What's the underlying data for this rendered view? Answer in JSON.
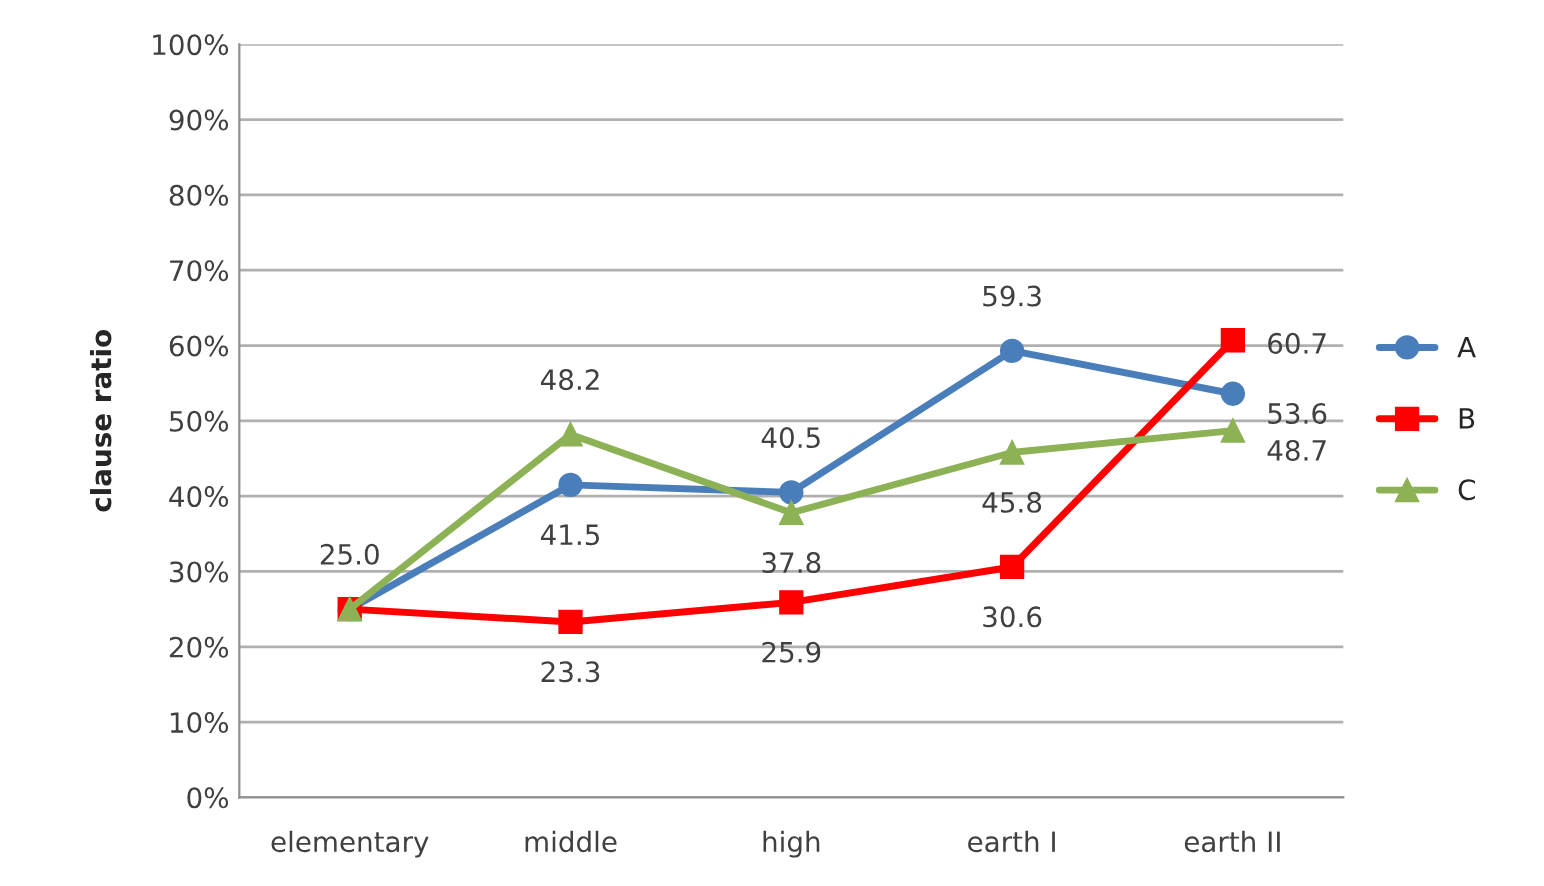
{
  "chart_data": {
    "type": "line",
    "ylabel": "clause ratio",
    "categories": [
      "elementary",
      "middle",
      "high",
      "earth I",
      "earth II"
    ],
    "series": [
      {
        "name": "A",
        "color": "#4a7ebb",
        "marker": "circle",
        "values": [
          25.0,
          41.5,
          40.5,
          59.3,
          53.6
        ],
        "value_labels": [
          null,
          "41.5",
          "40.5",
          "59.3",
          "53.6"
        ]
      },
      {
        "name": "B",
        "color": "#ff0000",
        "marker": "square",
        "values": [
          25.0,
          23.3,
          25.9,
          30.6,
          60.7
        ],
        "value_labels": [
          "25.0",
          "23.3",
          "25.9",
          "30.6",
          "60.7"
        ]
      },
      {
        "name": "C",
        "color": "#8db255",
        "marker": "triangle",
        "values": [
          25.0,
          48.2,
          37.8,
          45.8,
          48.7
        ],
        "value_labels": [
          null,
          "48.2",
          "37.8",
          "45.8",
          "48.7"
        ]
      }
    ],
    "ylim": [
      0,
      100
    ],
    "yticks": [
      {
        "value": 0,
        "label": "0%"
      },
      {
        "value": 10,
        "label": "10%"
      },
      {
        "value": 20,
        "label": "20%"
      },
      {
        "value": 30,
        "label": "30%"
      },
      {
        "value": 40,
        "label": "40%"
      },
      {
        "value": 50,
        "label": "50%"
      },
      {
        "value": 60,
        "label": "60%"
      },
      {
        "value": 70,
        "label": "70%"
      },
      {
        "value": 80,
        "label": "80%"
      },
      {
        "value": 90,
        "label": "90%"
      },
      {
        "value": 100,
        "label": "100%"
      }
    ],
    "grid": "y",
    "legend": "right",
    "line_style": "solid"
  }
}
